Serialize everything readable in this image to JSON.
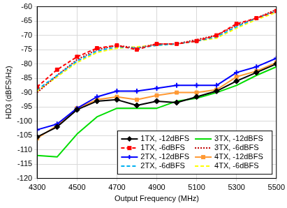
{
  "chart_data": {
    "type": "line",
    "x_label": "Output Frequency (MHz)",
    "y_label": "HD3 (dBFS/Hz)",
    "x": [
      4300,
      4400,
      4500,
      4600,
      4700,
      4800,
      4900,
      5000,
      5100,
      5200,
      5300,
      5400,
      5500
    ],
    "xlim": [
      4300,
      5500
    ],
    "xticks": [
      4300,
      4500,
      4700,
      4900,
      5100,
      5300,
      5500
    ],
    "ylim": [
      -120,
      -60
    ],
    "yticks": [
      -120,
      -115,
      -110,
      -105,
      -100,
      -95,
      -90,
      -85,
      -80,
      -75,
      -70,
      -65,
      -60
    ],
    "grid": true,
    "legend": "lower right",
    "series": [
      {
        "name": "1TX, -12dBFS",
        "color": "#000000",
        "marker": "diamond",
        "line_style": "solid",
        "values": [
          -105.5,
          -102,
          -96,
          -93,
          -92.5,
          -94.5,
          -93,
          -93.5,
          -91.5,
          -89.5,
          -86,
          -83,
          -80
        ]
      },
      {
        "name": "1TX, -6dBFS",
        "color": "#ff0000",
        "marker": "square",
        "line_style": "dashed",
        "values": [
          -88,
          -82,
          -77.5,
          -74.5,
          -73.5,
          -75,
          -73,
          -73,
          -72,
          -70,
          -66,
          -64,
          -61.5
        ]
      },
      {
        "name": "2TX, -12dBFS",
        "color": "#0000ff",
        "marker": "plus",
        "line_style": "solid",
        "values": [
          -103,
          -101,
          -95.5,
          -91.5,
          -89.5,
          -89.5,
          -88.5,
          -87.5,
          -87.5,
          -87.5,
          -83,
          -81,
          -78
        ]
      },
      {
        "name": "2TX, -6dBFS",
        "color": "#00b0f0",
        "marker": "none",
        "line_style": "dashed",
        "values": [
          -89,
          -84,
          -79,
          -75.5,
          -74,
          -74.5,
          -73.5,
          -73,
          -72,
          -70.5,
          -67,
          -64,
          -61.5
        ]
      },
      {
        "name": "3TX, -12dBFS",
        "color": "#00dd00",
        "marker": "none",
        "line_style": "solid",
        "values": [
          -112,
          -112.5,
          -104.5,
          -98.5,
          -95.5,
          -95.5,
          -95.5,
          -93,
          -92,
          -90,
          -87.5,
          -84,
          -81
        ]
      },
      {
        "name": "3TX, -6dBFS",
        "color": "#c00000",
        "marker": "none",
        "line_style": "dotted",
        "values": [
          -90,
          -84,
          -78.5,
          -75,
          -73.5,
          -74.5,
          -73,
          -73,
          -71.5,
          -70,
          -66.5,
          -64,
          -61
        ]
      },
      {
        "name": "4TX, -12dBFS",
        "color": "#ff9933",
        "marker": "square",
        "line_style": "solid",
        "values": [
          -106,
          -101.5,
          -95.5,
          -92.5,
          -91.5,
          -92.5,
          -91,
          -90,
          -90,
          -89,
          -84.5,
          -82.5,
          -79.5
        ]
      },
      {
        "name": "4TX, -6dBFS",
        "color": "#ffff00",
        "marker": "none",
        "line_style": "dashed",
        "values": [
          -89.5,
          -84.5,
          -79.5,
          -76,
          -74.5,
          -74,
          -73.5,
          -73,
          -72,
          -71,
          -67.5,
          -64.5,
          -62
        ]
      }
    ]
  }
}
